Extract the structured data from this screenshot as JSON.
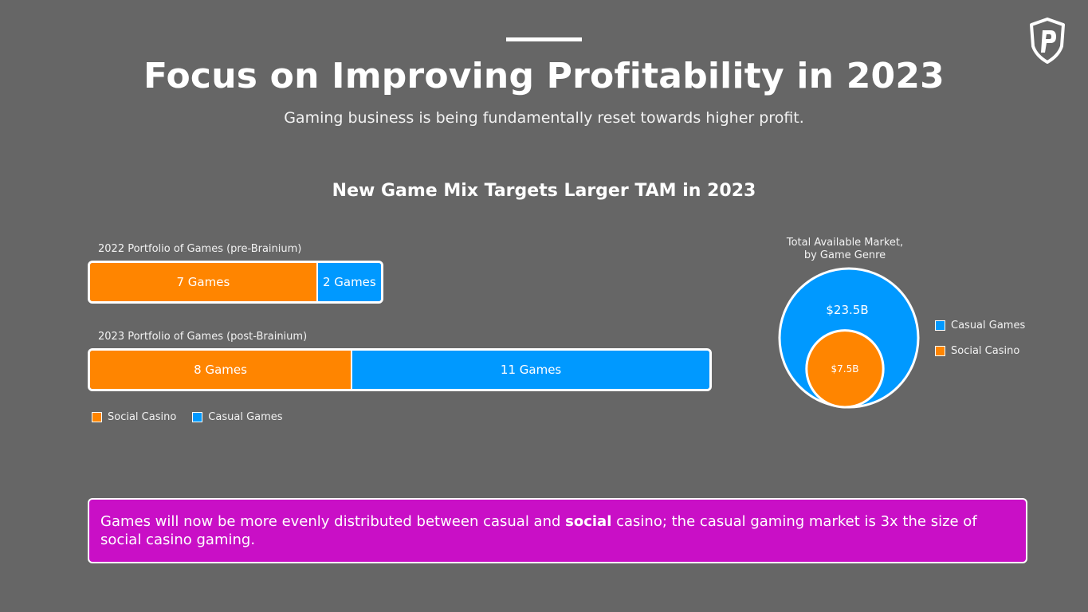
{
  "slide": {
    "title": "Focus on Improving Profitability in 2023",
    "subtitle": "Gaming business is being fundamentally reset towards higher profit."
  },
  "chart_data": [
    {
      "type": "bar",
      "orientation": "horizontal-stacked",
      "title": "New Game Mix Targets Larger TAM in 2023",
      "categories": [
        "2022 Portfolio of Games (pre-Brainium)",
        "2023 Portfolio of Games (post-Brainium)"
      ],
      "series": [
        {
          "name": "Social Casino",
          "values": [
            7,
            8
          ],
          "labels": [
            "7 Games",
            "8 Games"
          ],
          "color": "#ff8500"
        },
        {
          "name": "Casual Games",
          "values": [
            2,
            11
          ],
          "labels": [
            "2 Games",
            "11 Games"
          ],
          "color": "#0099ff"
        }
      ],
      "legend": {
        "position": "bottom-left",
        "items": [
          "Social Casino",
          "Casual Games"
        ]
      }
    },
    {
      "type": "bubble",
      "title": "Total Available Market, by Game Genre",
      "title_lines": [
        "Total Available Market,",
        "by Game Genre"
      ],
      "series": [
        {
          "name": "Casual Games",
          "value": 23.5,
          "label": "$23.5B",
          "color": "#0099ff"
        },
        {
          "name": "Social Casino",
          "value": 7.5,
          "label": "$7.5B",
          "color": "#ff8500"
        }
      ],
      "legend": {
        "position": "right",
        "items": [
          "Casual Games",
          "Social Casino"
        ]
      }
    }
  ],
  "callout": {
    "text_before": "Games will now be more evenly distributed between casual and ",
    "text_bold": "social",
    "text_after": " casino; the casual gaming market is 3x the size of social casino gaming."
  },
  "colors": {
    "background": "#666666",
    "social_casino": "#ff8500",
    "casual_games": "#0099ff",
    "callout": "#c90fc6"
  },
  "icons": {
    "logo": "shield-p-logo-icon"
  }
}
